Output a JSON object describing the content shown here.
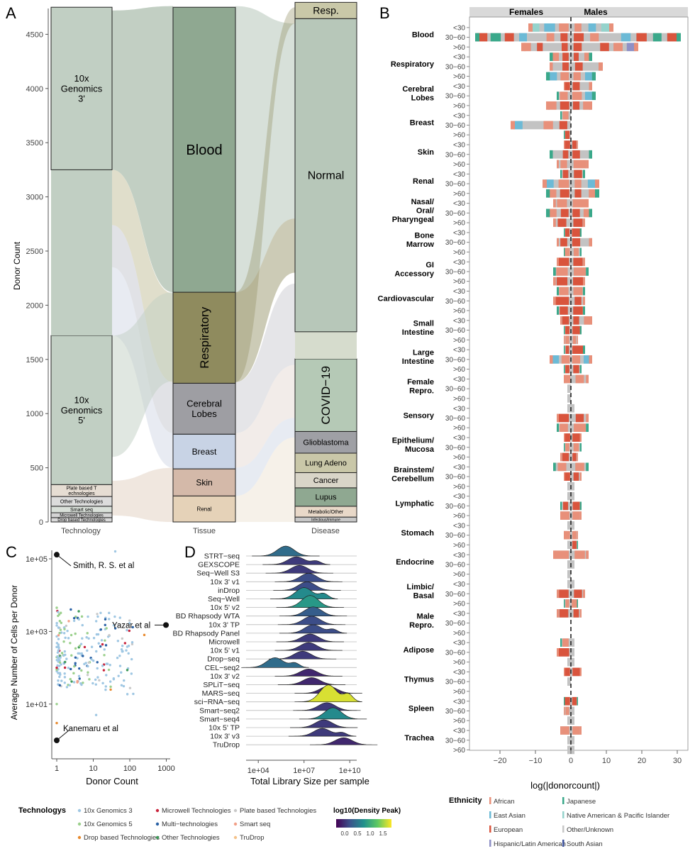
{
  "panels": {
    "A": "A",
    "B": "B",
    "C": "C",
    "D": "D"
  },
  "panel_a": {
    "ylabel": "Donor Count",
    "y_ticks": [
      0,
      500,
      1000,
      1500,
      2000,
      2500,
      3000,
      3500,
      4000,
      4500
    ],
    "columns": [
      "Technology",
      "Tissue",
      "Disease"
    ],
    "technology": [
      {
        "label": "Drop based Technologies",
        "value": 40
      },
      {
        "label": "Microwell Technologies",
        "value": 45
      },
      {
        "label": "Smart seq",
        "value": 60
      },
      {
        "label": "Other Technologies",
        "value": 90
      },
      {
        "label": "Plate based Technologies",
        "value": 110
      },
      {
        "label": "10x Genomics 5'",
        "value": 1375
      },
      {
        "label": "",
        "value": 1530
      },
      {
        "label": "10x Genomics 3'",
        "value": 1500
      }
    ],
    "tissue": [
      {
        "label": "Renal",
        "value": 240
      },
      {
        "label": "Skin",
        "value": 250
      },
      {
        "label": "Breast",
        "value": 320
      },
      {
        "label": "Cerebral Lobes",
        "value": 470
      },
      {
        "label": "Respiratory",
        "value": 840
      },
      {
        "label": "Blood",
        "value": 2630
      }
    ],
    "disease": [
      {
        "label": "Infectious/Immune",
        "value": 45
      },
      {
        "label": "Metabolic/Other",
        "value": 100
      },
      {
        "label": "Lupus",
        "value": 170
      },
      {
        "label": "Cancer",
        "value": 140
      },
      {
        "label": "Lung Adeno",
        "value": 180
      },
      {
        "label": "Glioblastoma",
        "value": 200
      },
      {
        "label": "COVID−19",
        "value": 670
      },
      {
        "label": "",
        "value": 250
      },
      {
        "label": "Normal",
        "value": 2890
      },
      {
        "label": "Resp.",
        "value": 150
      }
    ],
    "colors": {
      "blood": "#8fa891",
      "respiratory": "#8f8b5e",
      "cerebral": "#9e9ea3",
      "breast": "#c8d3e5",
      "skin": "#d4b9a9",
      "renal": "#e5d2b8",
      "normal": "#b7c7b9",
      "covid": "#b5c9b6",
      "tech_main": "#c1cfc3",
      "tech_3": "#cbc8a8"
    }
  },
  "panel_b": {
    "header_left": "Females",
    "header_right": "Males",
    "xlabel": "log(|donorcount|)",
    "x_ticks": [
      -20,
      -10,
      0,
      10,
      20,
      30
    ],
    "x_tick_labels": [
      "−20",
      "−10",
      "0",
      "10",
      "20",
      "30"
    ],
    "age_groups": [
      "<30",
      "30−60",
      ">60"
    ],
    "tissues": [
      "Blood",
      "Respiratory",
      "Cerebral Lobes",
      "Breast",
      "Skin",
      "Renal",
      "Nasal/ Oral/ Pharyngeal",
      "Bone Marrow",
      "GI Accessory",
      "Cardiovascular",
      "Small Intestine",
      "Large Intestine",
      "Female Repro.",
      "Sensory",
      "Epithelium/ Mucosa",
      "Brainstem/ Cerebellum",
      "Lymphatic",
      "Stomach",
      "Endocrine",
      "Limbic/ Basal",
      "Male Repro.",
      "Adipose",
      "Thymus",
      "Spleen",
      "Trachea"
    ],
    "legend_title": "Ethnicity",
    "ethnicities": [
      {
        "label": "African",
        "color": "#e8907a"
      },
      {
        "label": "Japanese",
        "color": "#3aa88a"
      },
      {
        "label": "East Asian",
        "color": "#6cbad6"
      },
      {
        "label": "Native American & Pacific Islander",
        "color": "#95d3cc"
      },
      {
        "label": "European",
        "color": "#d9543d"
      },
      {
        "label": "Other/Unknown",
        "color": "#c7c7c7"
      },
      {
        "label": "Hispanic/Latin American",
        "color": "#8e90c6"
      },
      {
        "label": "South Asian",
        "color": "#3a4f9a"
      }
    ],
    "chart_data": {
      "type": "bar",
      "orientation": "horizontal-diverging",
      "xlabel": "log(|donorcount|)",
      "xlim": [
        -27,
        31
      ],
      "note": "values are [female_extent, male_extent] per tissue per age group, read off the x axis",
      "values": [
        [
          [
            -12,
            12
          ],
          [
            -27,
            31
          ],
          [
            -14,
            19
          ]
        ],
        [
          [
            -6,
            6
          ],
          [
            -6,
            9
          ],
          [
            -7,
            7
          ]
        ],
        [
          [
            -2,
            6
          ],
          [
            -4,
            7
          ],
          [
            -7,
            6
          ]
        ],
        [
          [
            -3,
            0
          ],
          [
            -17,
            0
          ],
          [
            -2,
            0
          ]
        ],
        [
          [
            -2,
            2
          ],
          [
            -6,
            6
          ],
          [
            -4,
            5
          ]
        ],
        [
          [
            -3,
            4
          ],
          [
            -8,
            8
          ],
          [
            -7,
            8
          ]
        ],
        [
          [
            -5,
            5
          ],
          [
            -7,
            6
          ],
          [
            -5,
            4
          ]
        ],
        [
          [
            -2,
            3
          ],
          [
            -4,
            6
          ],
          [
            -2,
            3
          ]
        ],
        [
          [
            -4,
            4
          ],
          [
            -5,
            5
          ],
          [
            -5,
            4
          ]
        ],
        [
          [
            -4,
            4
          ],
          [
            -5,
            4
          ],
          [
            -4,
            4
          ]
        ],
        [
          [
            -3,
            6
          ],
          [
            -2,
            3
          ],
          [
            -2,
            2
          ]
        ],
        [
          [
            -2,
            4
          ],
          [
            -6,
            6
          ],
          [
            -2,
            3
          ]
        ],
        [
          [
            -2,
            5
          ],
          [
            -1,
            0
          ],
          [
            -1,
            0
          ]
        ],
        [
          [
            -1,
            1
          ],
          [
            -4,
            5
          ],
          [
            -4,
            5
          ]
        ],
        [
          [
            -2,
            3
          ],
          [
            -2,
            3
          ],
          [
            -3,
            2
          ]
        ],
        [
          [
            -5,
            5
          ],
          [
            -2,
            3
          ],
          [
            -1,
            1
          ]
        ],
        [
          [
            -1,
            1
          ],
          [
            -3,
            3
          ],
          [
            -3,
            3
          ]
        ],
        [
          [
            -1,
            1
          ],
          [
            -2,
            2
          ],
          [
            -1,
            2
          ]
        ],
        [
          [
            -5,
            5
          ],
          [
            -1,
            1
          ],
          [
            -1,
            0
          ]
        ],
        [
          [
            -1,
            1
          ],
          [
            -4,
            4
          ],
          [
            -2,
            2
          ]
        ],
        [
          [
            -4,
            3
          ],
          [
            0,
            0
          ],
          [
            0,
            0
          ]
        ],
        [
          [
            -3,
            1
          ],
          [
            -4,
            1
          ],
          [
            -1,
            1
          ]
        ],
        [
          [
            -2,
            3
          ],
          [
            -1,
            0
          ],
          [
            0,
            0
          ]
        ],
        [
          [
            -2,
            2
          ],
          [
            -2,
            1
          ],
          [
            -1,
            1
          ]
        ],
        [
          [
            -3,
            3
          ],
          [
            -1,
            1
          ],
          [
            -1,
            1
          ]
        ]
      ]
    }
  },
  "panel_c": {
    "ylabel": "Average Number of Cells per Donor",
    "xlabel": "Donor Count",
    "x_ticks": [
      "1",
      "10",
      "100",
      "1000"
    ],
    "y_ticks": [
      "1e+01",
      "1e+03",
      "1e+05"
    ],
    "annotations": [
      "Smith, R. S. et al",
      "Yazar et al",
      "Kanemaru et al"
    ],
    "chart_data": {
      "type": "scatter",
      "x_scale": "log",
      "y_scale": "log",
      "xlim": [
        0.7,
        1300
      ],
      "ylim": [
        0.5,
        300000
      ],
      "labeled_points": [
        {
          "label": "Smith, R. S. et al",
          "x": 1,
          "y": 130000
        },
        {
          "label": "Yazar et al",
          "x": 980,
          "y": 1500
        },
        {
          "label": "Kanemaru et al",
          "x": 1,
          "y": 1
        }
      ]
    }
  },
  "panel_d": {
    "xlabel": "Total Library Size per sample",
    "x_ticks": [
      "1e+04",
      "1e+07",
      "1e+10"
    ],
    "methods": [
      "STRT−seq",
      "GEXSCOPE",
      "Seq−Well S3",
      "10x 3' v1",
      "inDrop",
      "Seq−Well",
      "10x 5' v2",
      "BD Rhapsody WTA",
      "10x 3' TP",
      "BD Rhapsody Panel",
      "Microwell",
      "10x 5' v1",
      "Drop−seq",
      "CEL−seq2",
      "10x 3' v2",
      "SPLiT−seq",
      "MARS−seq",
      "sci−RNA−seq",
      "Smart−seq2",
      "Smart−seq4",
      "10x 5' TP",
      "10x 3' v3",
      "TruDrop"
    ],
    "chart_data": {
      "type": "area",
      "subtype": "ridgeline",
      "x_scale": "log",
      "note": "peak positions are log10(total library size); density peak is log10 as shown on the colour scale",
      "peak_log10": [
        5.8,
        6.5,
        6.7,
        7.3,
        7.2,
        7.0,
        7.4,
        7.6,
        7.5,
        7.6,
        7.4,
        7.3,
        6.9,
        5.1,
        7.3,
        7.5,
        8.6,
        8.6,
        8.5,
        8.9,
        8.3,
        8.2,
        9.6
      ],
      "density_peak": [
        0.6,
        0.3,
        0.3,
        0.4,
        0.4,
        0.8,
        0.9,
        0.5,
        0.4,
        0.4,
        0.3,
        0.3,
        0.3,
        0.6,
        0.2,
        0.2,
        0.2,
        1.6,
        0.3,
        0.8,
        0.3,
        0.3,
        0.2
      ]
    }
  },
  "legend_bottom": {
    "title": "Technologys",
    "items": [
      {
        "label": "10x Genomics 3",
        "color": "#9fc7e3"
      },
      {
        "label": "Microwell Technologies",
        "color": "#c9243c"
      },
      {
        "label": "Plate based Technologies",
        "color": "#c9c9c9"
      },
      {
        "label": "10x Genomics 5",
        "color": "#9bd08c"
      },
      {
        "label": "Multi−technologies",
        "color": "#2b62a5"
      },
      {
        "label": "Smart seq",
        "color": "#f2a088"
      },
      {
        "label": "Drop based Technologies",
        "color": "#e88a2e"
      },
      {
        "label": "Other Technologies",
        "color": "#3f9a5a"
      },
      {
        "label": "TruDrop",
        "color": "#f4c28a"
      }
    ],
    "density_title": "log10(Density Peak)",
    "density_ticks": [
      "0.0",
      "0.5",
      "1.0",
      "1.5"
    ]
  }
}
